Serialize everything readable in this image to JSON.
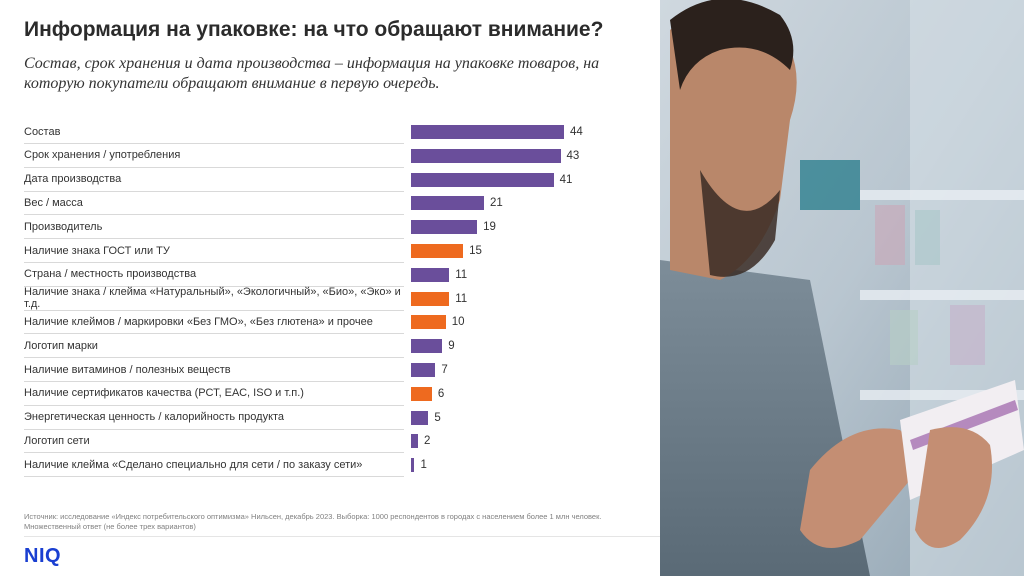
{
  "title": "Информация на упаковке: на что обращают внимание?",
  "subtitle": "Состав, срок хранения и дата производства – информация на упаковке товаров, на которую покупатели обращают внимание в первую очередь.",
  "source": "Источник: исследование «Индекс потребительского оптимизма» Нильсен, декабрь 2023. Выборка: 1000 респондентов в городах с населением более 1 млн человек. Множественный ответ (не более трех вариантов)",
  "logo": "NIQ",
  "colors": {
    "primary": "#6a4e9b",
    "highlight": "#ee6a1f"
  },
  "chart_data": {
    "type": "bar",
    "orientation": "horizontal",
    "categories": [
      "Состав",
      "Срок хранения / употребления",
      "Дата производства",
      "Вес / масса",
      "Производитель",
      "Наличие знака ГОСТ или ТУ",
      "Страна / местность производства",
      "Наличие знака / клейма «Натуральный», «Экологичный», «Био», «Эко» и т.д.",
      "Наличие клеймов / маркировки «Без ГМО», «Без глютена» и прочее",
      "Логотип марки",
      "Наличие витаминов / полезных веществ",
      "Наличие сертификатов качества (РСТ, ЕАС, ISO и т.п.)",
      "Энергетическая ценность / калорийность продукта",
      "Логотип сети",
      "Наличие клейма «Сделано специально для сети / по заказу сети»"
    ],
    "values": [
      44,
      43,
      41,
      21,
      19,
      15,
      11,
      11,
      10,
      9,
      7,
      6,
      5,
      2,
      1
    ],
    "highlighted": [
      false,
      false,
      false,
      false,
      false,
      true,
      false,
      true,
      true,
      false,
      false,
      true,
      false,
      false,
      false
    ],
    "xlim": [
      0,
      44
    ],
    "grid": false,
    "legend": "none"
  }
}
